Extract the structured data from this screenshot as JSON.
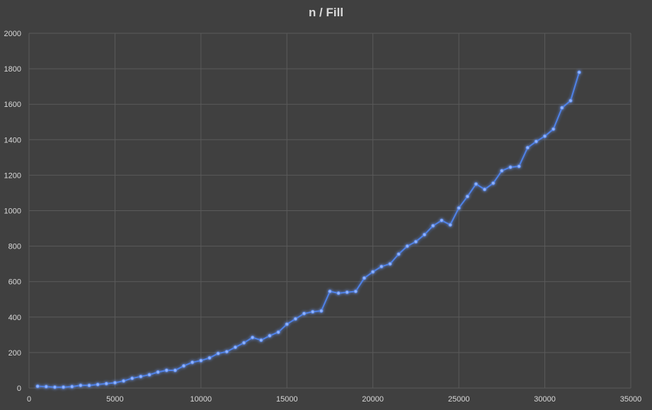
{
  "chart_data": {
    "type": "line",
    "title": "n / Fill",
    "xlabel": "",
    "ylabel": "",
    "xlim": [
      0,
      35000
    ],
    "ylim": [
      0,
      2000
    ],
    "x_ticks": [
      0,
      5000,
      10000,
      15000,
      20000,
      25000,
      30000,
      35000
    ],
    "y_ticks": [
      0,
      200,
      400,
      600,
      800,
      1000,
      1200,
      1400,
      1600,
      1800,
      2000
    ],
    "grid": true,
    "legend": "none",
    "colors": {
      "background": "#404040",
      "grid": "#5a5a5a",
      "line": "#4f81e6",
      "text": "#d9d9d9"
    },
    "series": [
      {
        "x": [
          500,
          1000,
          1500,
          2000,
          2500,
          3000,
          3500,
          4000,
          4500,
          5000,
          5500,
          6000,
          6500,
          7000,
          7500,
          8000,
          8500,
          9000,
          9500,
          10000,
          10500,
          11000,
          11500,
          12000,
          12500,
          13000,
          13500,
          14000,
          14500,
          15000,
          15500,
          16000,
          16500,
          17000,
          17500,
          18000,
          18500,
          19000,
          19500,
          20000,
          20500,
          21000,
          21500,
          22000,
          22500,
          23000,
          23500,
          24000,
          24500,
          25000,
          25500,
          26000,
          26500,
          27000,
          27500,
          28000,
          28500,
          29000,
          29500,
          30000,
          30500,
          31000,
          31500,
          32000
        ],
        "values": [
          10,
          8,
          5,
          5,
          8,
          15,
          15,
          20,
          25,
          30,
          40,
          55,
          65,
          75,
          90,
          100,
          100,
          125,
          145,
          155,
          170,
          195,
          205,
          230,
          255,
          285,
          270,
          295,
          315,
          360,
          390,
          420,
          430,
          435,
          545,
          535,
          540,
          545,
          620,
          655,
          685,
          700,
          755,
          800,
          825,
          865,
          915,
          945,
          920,
          1015,
          1080,
          1150,
          1120,
          1155,
          1225,
          1245,
          1250,
          1355,
          1390,
          1420,
          1460,
          1580,
          1620,
          1780
        ]
      }
    ]
  }
}
